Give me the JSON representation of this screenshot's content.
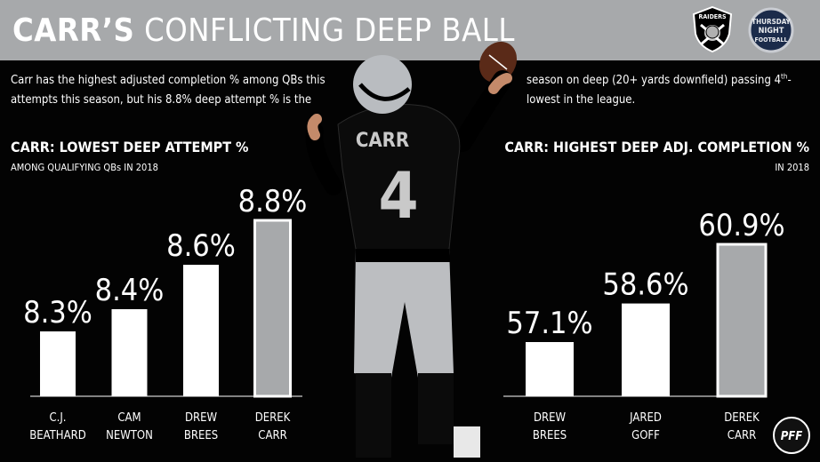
{
  "header": {
    "title_bold": "CARR’S",
    "title_rest": "CONFLICTING DEEP BALL"
  },
  "intro": {
    "left": "Carr has the highest adjusted completion % among QBs this attempts this season, but his 8.8% deep attempt % is the",
    "right_pre": "season on deep (20+ yards downfield) passing 4",
    "right_sup": "th",
    "right_post": "-lowest in the league."
  },
  "player": {
    "name": "CARR",
    "number": "4"
  },
  "logos": {
    "raiders": "RAIDERS",
    "tnf_line1": "THURSDAY",
    "tnf_line2": "NIGHT",
    "tnf_line3": "FOOTBALL",
    "pff": "PFF"
  },
  "colors": {
    "background": "#030303",
    "header": "#a7a9ab",
    "bar": "#ffffff",
    "highlight_bar": "#a7a9ab"
  },
  "chart_data": [
    {
      "type": "bar",
      "title": "CARR: LOWEST DEEP ATTEMPT %",
      "subtitle": "AMONG QUALIFYING QBs IN 2018",
      "categories": [
        [
          "C.J.",
          "BEATHARD"
        ],
        [
          "CAM",
          "NEWTON"
        ],
        [
          "DREW",
          "BREES"
        ],
        [
          "DEREK",
          "CARR"
        ]
      ],
      "values": [
        8.3,
        8.4,
        8.6,
        8.8
      ],
      "labels": [
        "8.3%",
        "8.4%",
        "8.6%",
        "8.8%"
      ],
      "highlight_index": 3,
      "grid": false
    },
    {
      "type": "bar",
      "title": "CARR: HIGHEST DEEP ADJ. COMPLETION %",
      "subtitle": "IN 2018",
      "categories": [
        [
          "DREW",
          "BREES"
        ],
        [
          "JARED",
          "GOFF"
        ],
        [
          "DEREK",
          "CARR"
        ]
      ],
      "values": [
        57.1,
        58.6,
        60.9
      ],
      "labels": [
        "57.1%",
        "58.6%",
        "60.9%"
      ],
      "highlight_index": 2,
      "grid": false
    }
  ]
}
